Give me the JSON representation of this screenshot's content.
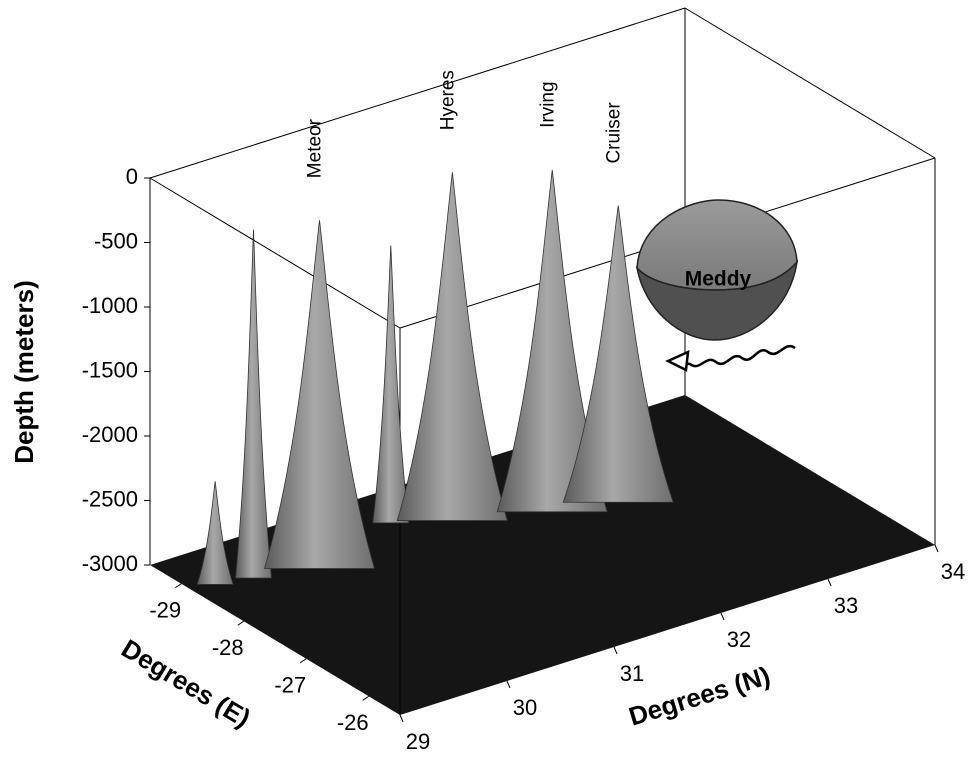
{
  "chart_data": {
    "type": "surface3d",
    "xlabel": "Degrees (E)",
    "xlim": [
      -29.5,
      -25.5
    ],
    "xticks": [
      -29,
      -28,
      -27,
      -26
    ],
    "ylabel": "Degrees (N)",
    "ylim": [
      29,
      34
    ],
    "yticks": [
      29,
      30,
      31,
      32,
      33,
      34
    ],
    "zlabel": "Depth (meters)",
    "zlim": [
      -3000,
      0
    ],
    "zticks": [
      0,
      -500,
      -1000,
      -1500,
      -2000,
      -2500,
      -3000
    ],
    "seamounts": [
      {
        "name": "Meteor",
        "x": -28.5,
        "y": 30.0,
        "peak": -300
      },
      {
        "name": "Hyeres",
        "x": -28.6,
        "y": 31.3,
        "peak": -300
      },
      {
        "name": "Irving",
        "x": -28.2,
        "y": 32.0,
        "peak": -350
      },
      {
        "name": "Cruiser",
        "x": -28.0,
        "y": 32.5,
        "peak": -700
      }
    ],
    "peaks": [
      {
        "x": -28.8,
        "y": 29.2,
        "peak": -2200
      },
      {
        "x": -28.7,
        "y": 29.5,
        "peak": -300
      },
      {
        "x": -28.9,
        "y": 30.9,
        "peak": -850
      }
    ],
    "annotation": "Meddy"
  }
}
